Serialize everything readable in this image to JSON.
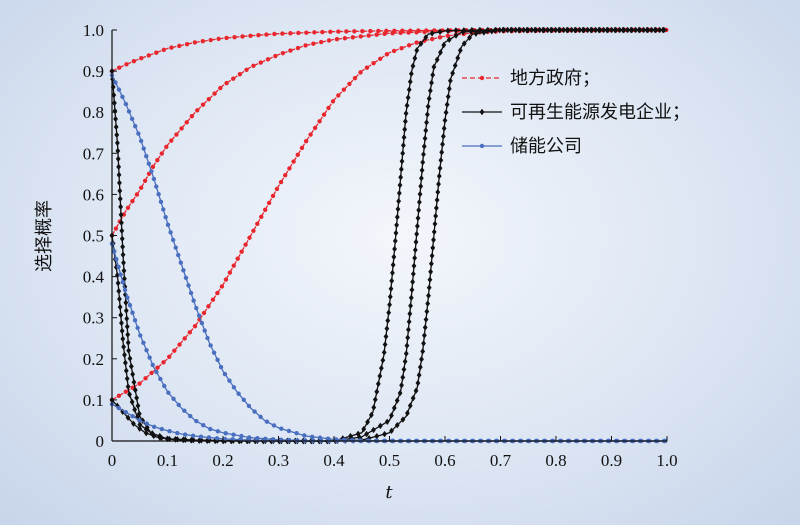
{
  "chart_data": {
    "type": "line",
    "title": "",
    "xlabel": "t",
    "ylabel": "选择概率",
    "xlim": [
      0,
      1.0
    ],
    "ylim": [
      0,
      1.0
    ],
    "x_ticks": [
      "0",
      "0.1",
      "0.2",
      "0.3",
      "0.4",
      "0.5",
      "0.6",
      "0.7",
      "0.8",
      "0.9",
      "1.0"
    ],
    "y_ticks": [
      "0",
      "0.1",
      "0.2",
      "0.3",
      "0.4",
      "0.5",
      "0.6",
      "0.7",
      "0.8",
      "0.9",
      "1.0"
    ],
    "grid": false,
    "legend_position": "top-right",
    "legend": [
      {
        "label": "地方政府；",
        "color": "#e8262e",
        "dash": "dashed",
        "marker": "circle"
      },
      {
        "label": "可再生能源发电企业；",
        "color": "#111111",
        "dash": "solid",
        "marker": "diamond"
      },
      {
        "label": "储能公司",
        "color": "#4a6fbf",
        "dash": "solid",
        "marker": "circle"
      }
    ],
    "series": [
      {
        "group": 0,
        "x": [
          0,
          0.025,
          0.05,
          0.1,
          0.15,
          0.2,
          0.25,
          0.3,
          0.4,
          0.5,
          0.6,
          0.7,
          0.8,
          1.0
        ],
        "y": [
          0.9,
          0.916,
          0.93,
          0.955,
          0.97,
          0.98,
          0.986,
          0.991,
          0.996,
          0.998,
          0.999,
          1.0,
          1.0,
          1.0
        ]
      },
      {
        "group": 0,
        "x": [
          0,
          0.025,
          0.05,
          0.075,
          0.1,
          0.125,
          0.15,
          0.2,
          0.25,
          0.3,
          0.35,
          0.4,
          0.5,
          0.6,
          0.7,
          1.0
        ],
        "y": [
          0.5,
          0.56,
          0.61,
          0.67,
          0.72,
          0.76,
          0.8,
          0.865,
          0.91,
          0.94,
          0.963,
          0.977,
          0.992,
          0.997,
          0.999,
          1.0
        ]
      },
      {
        "group": 0,
        "x": [
          0,
          0.05,
          0.1,
          0.15,
          0.2,
          0.25,
          0.3,
          0.35,
          0.4,
          0.45,
          0.5,
          0.55,
          0.6,
          0.65,
          0.7,
          1.0
        ],
        "y": [
          0.1,
          0.14,
          0.2,
          0.28,
          0.38,
          0.5,
          0.62,
          0.73,
          0.83,
          0.9,
          0.945,
          0.97,
          0.985,
          0.993,
          0.997,
          1.0
        ]
      },
      {
        "group": 1,
        "x": [
          0,
          0.01,
          0.02,
          0.03,
          0.05,
          0.07,
          0.1,
          0.15,
          0.2,
          0.4,
          0.45,
          0.47,
          0.49,
          0.5,
          0.51,
          0.52,
          0.53,
          0.54,
          0.55,
          0.57,
          0.6,
          0.65,
          0.7,
          1.0
        ],
        "y": [
          0.9,
          0.72,
          0.45,
          0.22,
          0.06,
          0.02,
          0.005,
          0.001,
          0.0,
          0.0,
          0.02,
          0.07,
          0.21,
          0.33,
          0.48,
          0.64,
          0.8,
          0.9,
          0.955,
          0.99,
          0.998,
          1.0,
          1.0,
          1.0
        ]
      },
      {
        "group": 1,
        "x": [
          0,
          0.01,
          0.02,
          0.03,
          0.05,
          0.08,
          0.1,
          0.15,
          0.2,
          0.3,
          0.4,
          0.45,
          0.5,
          0.52,
          0.53,
          0.54,
          0.55,
          0.56,
          0.57,
          0.58,
          0.6,
          0.63,
          0.7,
          1.0
        ],
        "y": [
          0.5,
          0.4,
          0.24,
          0.12,
          0.04,
          0.01,
          0.005,
          0.002,
          0.001,
          0.0,
          0.0,
          0.01,
          0.05,
          0.12,
          0.21,
          0.36,
          0.52,
          0.68,
          0.82,
          0.91,
          0.97,
          0.995,
          1.0,
          1.0
        ]
      },
      {
        "group": 1,
        "x": [
          0,
          0.02,
          0.04,
          0.06,
          0.08,
          0.1,
          0.15,
          0.2,
          0.3,
          0.4,
          0.45,
          0.5,
          0.53,
          0.55,
          0.56,
          0.57,
          0.58,
          0.59,
          0.6,
          0.61,
          0.63,
          0.65,
          0.7,
          1.0
        ],
        "y": [
          0.1,
          0.07,
          0.04,
          0.02,
          0.01,
          0.005,
          0.002,
          0.001,
          0.0,
          0.0,
          0.002,
          0.02,
          0.06,
          0.13,
          0.22,
          0.35,
          0.5,
          0.65,
          0.78,
          0.88,
          0.96,
          0.99,
          1.0,
          1.0
        ]
      },
      {
        "group": 2,
        "x": [
          0,
          0.025,
          0.05,
          0.075,
          0.1,
          0.125,
          0.15,
          0.175,
          0.2,
          0.225,
          0.25,
          0.275,
          0.3,
          0.35,
          0.4,
          0.45,
          0.5,
          0.6,
          0.8,
          1.0
        ],
        "y": [
          0.89,
          0.82,
          0.74,
          0.64,
          0.53,
          0.43,
          0.33,
          0.24,
          0.17,
          0.12,
          0.08,
          0.05,
          0.032,
          0.012,
          0.004,
          0.001,
          0.0,
          0.0,
          0.0,
          0.0
        ]
      },
      {
        "group": 2,
        "x": [
          0,
          0.025,
          0.05,
          0.075,
          0.1,
          0.125,
          0.15,
          0.175,
          0.2,
          0.25,
          0.3,
          0.35,
          0.4,
          0.5,
          0.6,
          0.8,
          1.0
        ],
        "y": [
          0.48,
          0.36,
          0.26,
          0.18,
          0.12,
          0.08,
          0.05,
          0.03,
          0.02,
          0.008,
          0.003,
          0.001,
          0.0,
          0.0,
          0.0,
          0.0,
          0.0
        ]
      },
      {
        "group": 2,
        "x": [
          0,
          0.025,
          0.05,
          0.075,
          0.1,
          0.125,
          0.15,
          0.2,
          0.25,
          0.3,
          0.35,
          0.4,
          0.5,
          0.6,
          0.8,
          1.0
        ],
        "y": [
          0.09,
          0.07,
          0.05,
          0.035,
          0.025,
          0.017,
          0.012,
          0.005,
          0.002,
          0.001,
          0.0,
          0.0,
          0.0,
          0.0,
          0.0,
          0.0
        ]
      }
    ]
  }
}
